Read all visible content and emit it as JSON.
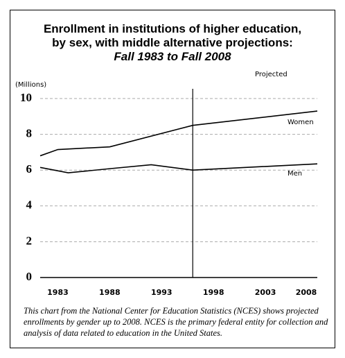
{
  "chart_data": {
    "type": "line",
    "title": "Enrollment in institutions of higher education, by sex, with middle alternative projections:",
    "subtitle": "Fall 1983 to Fall 2008",
    "y_label": "(Millions)",
    "projection_label": "Projected",
    "projection_start": 1996,
    "caption": "This chart from the National Center for Education Statistics (NCES) shows projected enrollments by gender up to 2008. NCES is the primary federal entity for collection and analysis of data related to education in the United States.",
    "xlim": [
      1981.3,
      2008
    ],
    "xticks": [
      1983,
      1988,
      1993,
      1998,
      2003,
      2008
    ],
    "ylim": [
      0,
      10
    ],
    "yticks": [
      0,
      2,
      4,
      6,
      8,
      10
    ],
    "grid": true,
    "series": [
      {
        "name": "Women",
        "color": "#000000",
        "x": [
          1981.3,
          1983,
          1988,
          1996,
          2008
        ],
        "values": [
          6.8,
          7.15,
          7.3,
          8.5,
          9.3
        ]
      },
      {
        "name": "Men",
        "color": "#000000",
        "x": [
          1981.3,
          1984,
          1988,
          1992,
          1996,
          2008
        ],
        "values": [
          6.15,
          5.85,
          6.08,
          6.3,
          6.0,
          6.35
        ]
      }
    ]
  }
}
